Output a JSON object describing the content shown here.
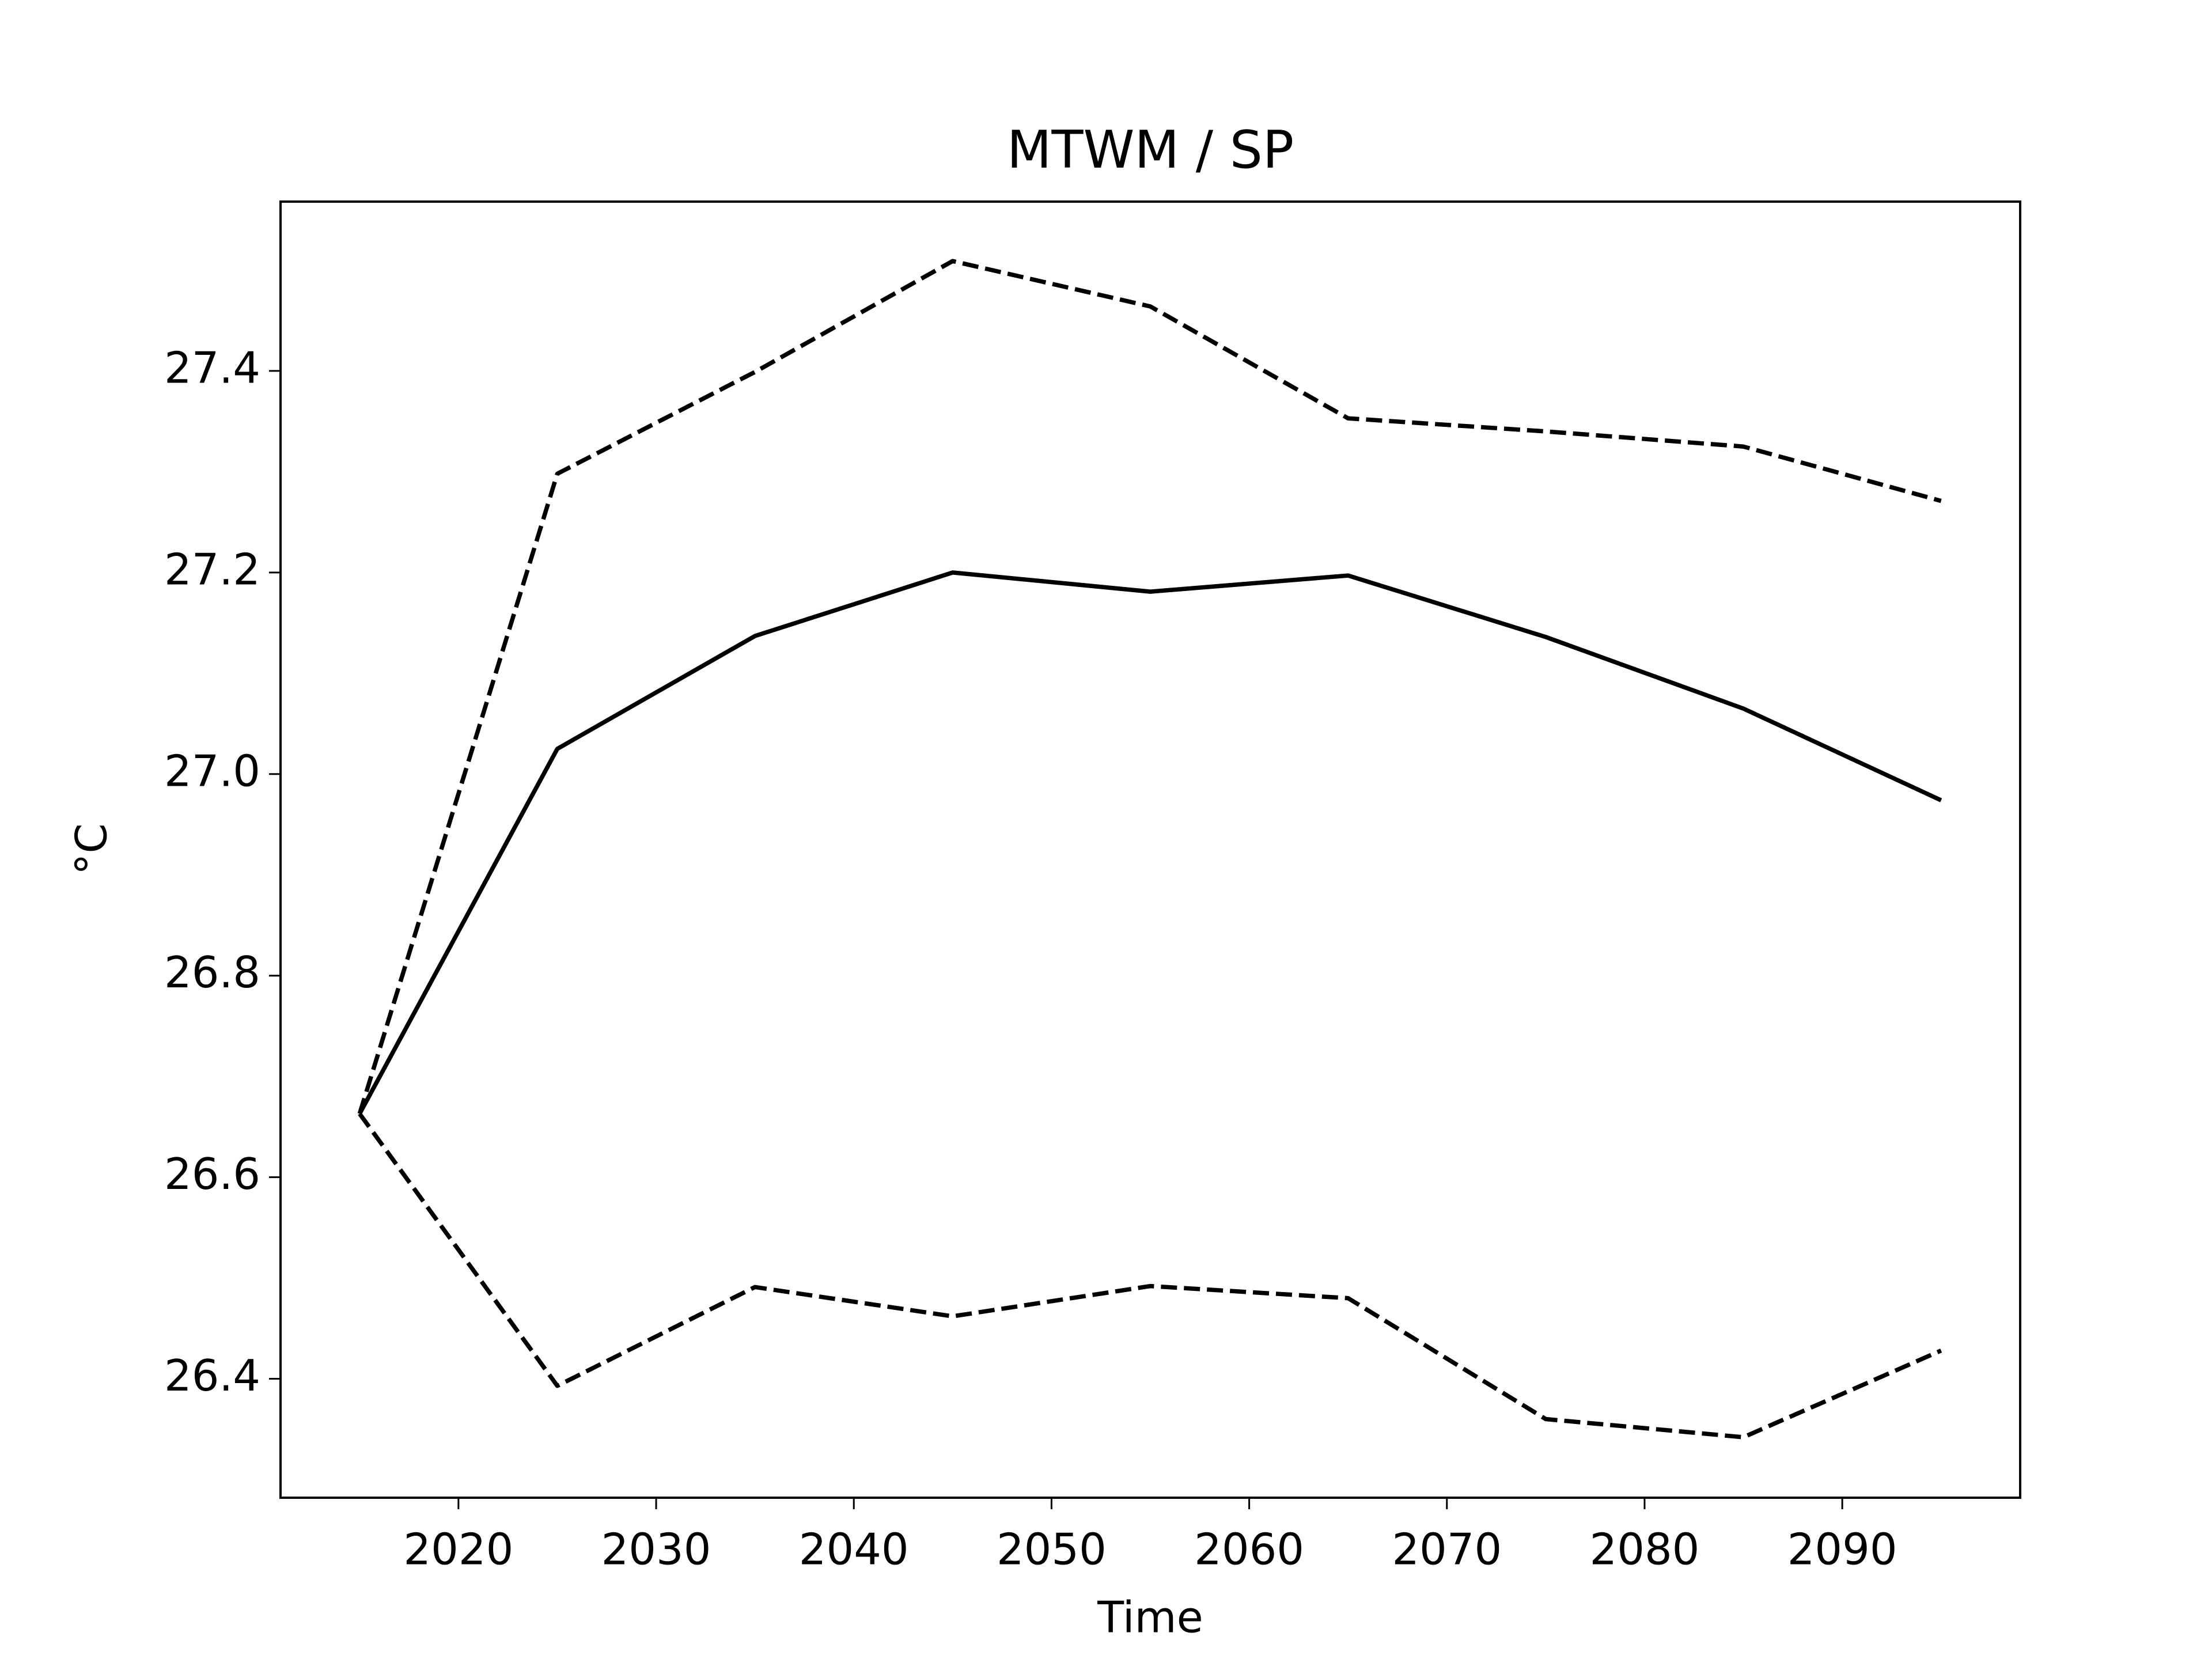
{
  "chart_data": {
    "type": "line",
    "title": "MTWM / SP",
    "xlabel": "Time",
    "ylabel": "°C",
    "x": [
      2015,
      2025,
      2035,
      2045,
      2055,
      2065,
      2075,
      2085,
      2095
    ],
    "series": [
      {
        "color": "#000000",
        "linestyle": "dashed",
        "values": [
          26.663,
          27.298,
          27.399,
          27.509,
          27.464,
          27.353,
          27.34,
          27.325,
          27.271
        ]
      },
      {
        "color": "#000000",
        "linestyle": "solid",
        "values": [
          26.663,
          27.025,
          27.137,
          27.2,
          27.181,
          27.197,
          27.136,
          27.065,
          26.974
        ]
      },
      {
        "color": "#000000",
        "linestyle": "dashed",
        "values": [
          26.663,
          26.393,
          26.491,
          26.462,
          26.492,
          26.48,
          26.36,
          26.342,
          26.428
        ]
      }
    ],
    "xlim": [
      2011,
      2099
    ],
    "xticks": [
      2020,
      2030,
      2040,
      2050,
      2060,
      2070,
      2080,
      2090
    ],
    "ylim": [
      26.282,
      27.568
    ],
    "yticks": [
      26.4,
      26.6,
      26.8,
      {
        "value": 27,
        "label": "27.0"
      },
      27.2,
      27.4
    ],
    "grid": false
  }
}
